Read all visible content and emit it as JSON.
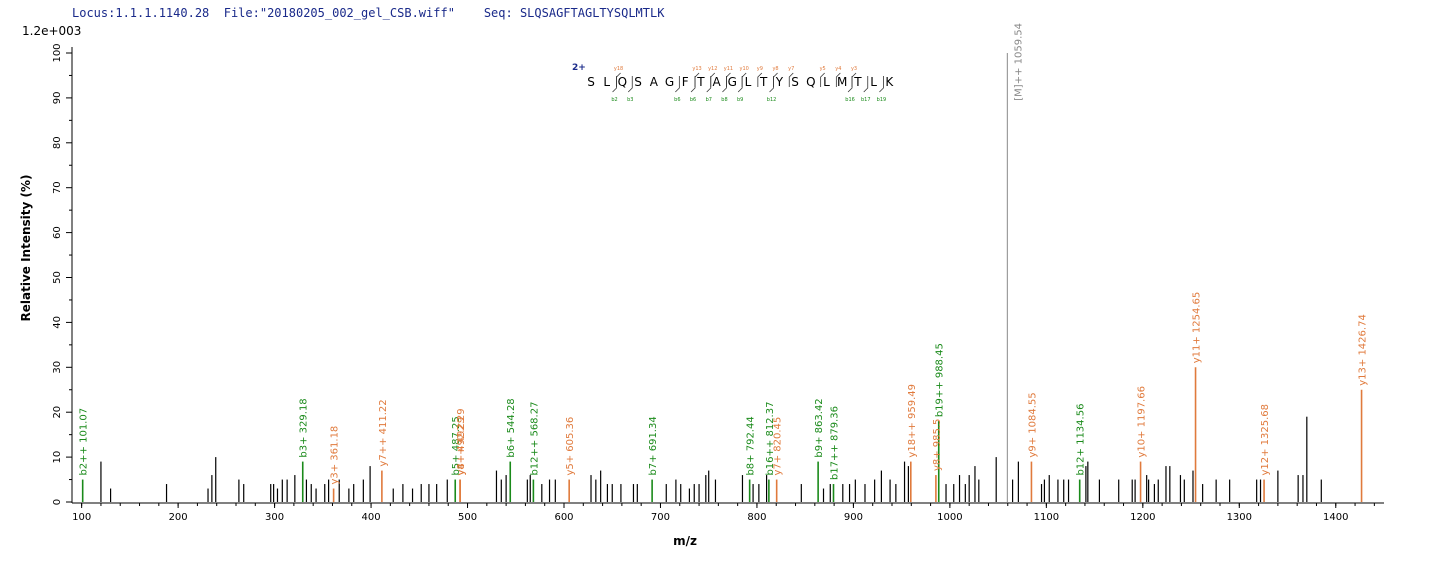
{
  "header": {
    "locus": "Locus:1.1.1.1140.28",
    "file": "File:\"20180205_002_gel_CSB.wiff\"",
    "seq": "Seq: SLQSAGFTAGLTYSQLMTLK"
  },
  "max_intensity_label": "1.2e+003",
  "colors": {
    "b_ion": "#1a8a1a",
    "y_ion": "#e07a3c",
    "other": "#000000",
    "precursor": "#888888",
    "header": "#1a2a8a"
  },
  "sequence_panel": {
    "charge": "2+",
    "residues": [
      "S",
      "L",
      "Q",
      "S",
      "A",
      "G",
      "F",
      "T",
      "A",
      "G",
      "L",
      "T",
      "Y",
      "S",
      "Q",
      "L",
      "M",
      "T",
      "L",
      "K"
    ],
    "y_marks": [
      {
        "after": 2,
        "label": "y18"
      },
      {
        "after": 7,
        "label": "y13"
      },
      {
        "after": 8,
        "label": "y12"
      },
      {
        "after": 9,
        "label": "y11"
      },
      {
        "after": 10,
        "label": "y10"
      },
      {
        "after": 11,
        "label": "y9"
      },
      {
        "after": 12,
        "label": "y8"
      },
      {
        "after": 13,
        "label": "y7"
      },
      {
        "after": 15,
        "label": "y5"
      },
      {
        "after": 16,
        "label": "y4"
      },
      {
        "after": 17,
        "label": "y3"
      }
    ],
    "b_marks": [
      {
        "after": 2,
        "label": "b2"
      },
      {
        "after": 3,
        "label": "b3"
      },
      {
        "after": 6,
        "label": "b6"
      },
      {
        "after": 7,
        "label": "b6"
      },
      {
        "after": 8,
        "label": "b7"
      },
      {
        "after": 9,
        "label": "b8"
      },
      {
        "after": 10,
        "label": "b9"
      },
      {
        "after": 12,
        "label": "b12"
      },
      {
        "after": 17,
        "label": "b16"
      },
      {
        "after": 18,
        "label": "b17"
      },
      {
        "after": 19,
        "label": "b19"
      }
    ]
  },
  "chart_data": {
    "type": "bar",
    "xlabel": "m/z",
    "ylabel": "Relative   Intensity (%)",
    "xlim": [
      90,
      1450
    ],
    "ylim": [
      0,
      100
    ],
    "x_ticks": [
      100,
      200,
      300,
      400,
      500,
      600,
      700,
      800,
      900,
      1000,
      1100,
      1200,
      1300,
      1400
    ],
    "y_ticks": [
      0,
      10,
      20,
      30,
      40,
      50,
      60,
      70,
      80,
      90,
      100
    ],
    "precursor": {
      "mz": 1059.54,
      "label": "[M]++ 1059.54",
      "intensity": 100
    },
    "annotated_peaks": [
      {
        "mz": 101.07,
        "intensity": 5,
        "ion": "b",
        "label": "b2++ 101.07"
      },
      {
        "mz": 329.18,
        "intensity": 9,
        "ion": "b",
        "label": "b3+ 329.18"
      },
      {
        "mz": 361.18,
        "intensity": 3,
        "ion": "y",
        "label": "y3+ 361.18"
      },
      {
        "mz": 411.22,
        "intensity": 7,
        "ion": "y",
        "label": "y7++ 411.22"
      },
      {
        "mz": 487.25,
        "intensity": 5,
        "ion": "b",
        "label": "b5+ 487.25"
      },
      {
        "mz": 492.29,
        "intensity": 5,
        "ion": "y",
        "label": "y4+ 492.29"
      },
      {
        "mz": 492.29,
        "intensity": 5,
        "ion": "y",
        "label": "y8++ 492.29"
      },
      {
        "mz": 544.28,
        "intensity": 9,
        "ion": "b",
        "label": "b6+ 544.28"
      },
      {
        "mz": 568.27,
        "intensity": 5,
        "ion": "b",
        "label": "b12++ 568.27"
      },
      {
        "mz": 605.36,
        "intensity": 5,
        "ion": "y",
        "label": "y5+ 605.36"
      },
      {
        "mz": 691.34,
        "intensity": 5,
        "ion": "b",
        "label": "b7+ 691.34"
      },
      {
        "mz": 792.44,
        "intensity": 5,
        "ion": "b",
        "label": "b8+ 792.44"
      },
      {
        "mz": 812.37,
        "intensity": 5,
        "ion": "b",
        "label": "b16++ 812.37"
      },
      {
        "mz": 820.45,
        "intensity": 5,
        "ion": "y",
        "label": "y7+ 820.45"
      },
      {
        "mz": 863.42,
        "intensity": 9,
        "ion": "b",
        "label": "b9+ 863.42"
      },
      {
        "mz": 879.36,
        "intensity": 4,
        "ion": "b",
        "label": "b17++ 879.36"
      },
      {
        "mz": 959.49,
        "intensity": 9,
        "ion": "y",
        "label": "y18++ 959.49"
      },
      {
        "mz": 985.5,
        "intensity": 6,
        "ion": "y",
        "label": "y8+ 985.5"
      },
      {
        "mz": 988.45,
        "intensity": 18,
        "ion": "b",
        "label": "b19++ 988.45"
      },
      {
        "mz": 1084.55,
        "intensity": 9,
        "ion": "y",
        "label": "y9+ 1084.55"
      },
      {
        "mz": 1134.56,
        "intensity": 5,
        "ion": "b",
        "label": "b12+ 1134.56"
      },
      {
        "mz": 1197.66,
        "intensity": 9,
        "ion": "y",
        "label": "y10+ 1197.66"
      },
      {
        "mz": 1254.65,
        "intensity": 30,
        "ion": "y",
        "label": "y11+ 1254.65"
      },
      {
        "mz": 1325.68,
        "intensity": 5,
        "ion": "y",
        "label": "y12+ 1325.68"
      },
      {
        "mz": 1426.74,
        "intensity": 25,
        "ion": "y",
        "label": "y13+ 1426.74"
      }
    ],
    "unannotated_peaks": [
      [
        120,
        9
      ],
      [
        130,
        3
      ],
      [
        188,
        4
      ],
      [
        231,
        3
      ],
      [
        235,
        6
      ],
      [
        239,
        10
      ],
      [
        263,
        5
      ],
      [
        268,
        4
      ],
      [
        296,
        4
      ],
      [
        299,
        4
      ],
      [
        303,
        3
      ],
      [
        308,
        5
      ],
      [
        313,
        5
      ],
      [
        321,
        6
      ],
      [
        333,
        5
      ],
      [
        338,
        4
      ],
      [
        343,
        3
      ],
      [
        352,
        4
      ],
      [
        356,
        5
      ],
      [
        367,
        5
      ],
      [
        377,
        3
      ],
      [
        382,
        4
      ],
      [
        392,
        5
      ],
      [
        399,
        8
      ],
      [
        423,
        3
      ],
      [
        433,
        4
      ],
      [
        443,
        3
      ],
      [
        452,
        4
      ],
      [
        460,
        4
      ],
      [
        468,
        4
      ],
      [
        479,
        5
      ],
      [
        530,
        7
      ],
      [
        535,
        5
      ],
      [
        540,
        6
      ],
      [
        562,
        5
      ],
      [
        565,
        6
      ],
      [
        577,
        4
      ],
      [
        585,
        5
      ],
      [
        591,
        5
      ],
      [
        628,
        6
      ],
      [
        633,
        5
      ],
      [
        638,
        7
      ],
      [
        645,
        4
      ],
      [
        650,
        4
      ],
      [
        659,
        4
      ],
      [
        672,
        4
      ],
      [
        676,
        4
      ],
      [
        706,
        4
      ],
      [
        716,
        5
      ],
      [
        721,
        4
      ],
      [
        730,
        3
      ],
      [
        735,
        4
      ],
      [
        740,
        4
      ],
      [
        747,
        6
      ],
      [
        750,
        7
      ],
      [
        757,
        5
      ],
      [
        785,
        6
      ],
      [
        796,
        4
      ],
      [
        802,
        4
      ],
      [
        810,
        6
      ],
      [
        846,
        4
      ],
      [
        869,
        3
      ],
      [
        876,
        4
      ],
      [
        889,
        4
      ],
      [
        896,
        4
      ],
      [
        902,
        5
      ],
      [
        912,
        4
      ],
      [
        922,
        5
      ],
      [
        929,
        7
      ],
      [
        938,
        5
      ],
      [
        944,
        4
      ],
      [
        953,
        9
      ],
      [
        957,
        8
      ],
      [
        996,
        4
      ],
      [
        1004,
        4
      ],
      [
        1010,
        6
      ],
      [
        1016,
        4
      ],
      [
        1020,
        6
      ],
      [
        1026,
        8
      ],
      [
        1030,
        5
      ],
      [
        1048,
        10
      ],
      [
        1065,
        5
      ],
      [
        1071,
        9
      ],
      [
        1095,
        4
      ],
      [
        1098,
        5
      ],
      [
        1103,
        6
      ],
      [
        1112,
        5
      ],
      [
        1118,
        5
      ],
      [
        1123,
        5
      ],
      [
        1141,
        8
      ],
      [
        1143,
        9
      ],
      [
        1155,
        5
      ],
      [
        1175,
        5
      ],
      [
        1189,
        5
      ],
      [
        1192,
        5
      ],
      [
        1204,
        6
      ],
      [
        1206,
        5
      ],
      [
        1212,
        4
      ],
      [
        1216,
        5
      ],
      [
        1224,
        8
      ],
      [
        1228,
        8
      ],
      [
        1239,
        6
      ],
      [
        1243,
        5
      ],
      [
        1252,
        7
      ],
      [
        1262,
        4
      ],
      [
        1276,
        5
      ],
      [
        1290,
        5
      ],
      [
        1318,
        5
      ],
      [
        1322,
        5
      ],
      [
        1340,
        7
      ],
      [
        1361,
        6
      ],
      [
        1366,
        6
      ],
      [
        1370,
        19
      ],
      [
        1385,
        5
      ]
    ]
  }
}
